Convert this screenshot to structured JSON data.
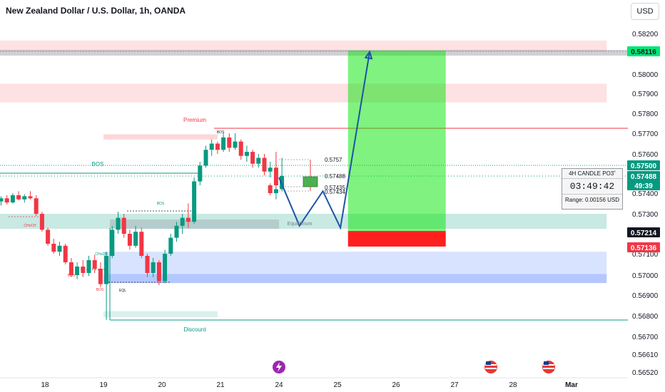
{
  "header": {
    "title": "New Zealand Dollar / U.S. Dollar, 1h, OANDA",
    "currency": "USD"
  },
  "chart_data": {
    "type": "candlestick",
    "y_ticks": [
      "0.58200",
      "0.58000",
      "0.57900",
      "0.57800",
      "0.57700",
      "0.57600",
      "0.57400",
      "0.57300",
      "0.57100",
      "0.57000",
      "0.56900",
      "0.56800",
      "0.56700",
      "0.56610",
      "0.56520"
    ],
    "x_ticks": [
      {
        "label": "18",
        "day": 18.0
      },
      {
        "label": "19",
        "day": 19.0
      },
      {
        "label": "20",
        "day": 20.0
      },
      {
        "label": "21",
        "day": 21.0
      },
      {
        "label": "24",
        "day": 24.0
      },
      {
        "label": "25",
        "day": 25.0
      },
      {
        "label": "26",
        "day": 26.0
      },
      {
        "label": "27",
        "day": 27.0
      },
      {
        "label": "28",
        "day": 28.0
      },
      {
        "label": "Mar",
        "day": 29.0
      }
    ],
    "price_badges": [
      {
        "label": "0.58116",
        "price": 0.58116,
        "bg": "#00e676",
        "fg": "#131722"
      },
      {
        "label": "0.57500",
        "price": 0.575,
        "bg": "#089981",
        "fg": "#ffffff"
      },
      {
        "label": "0.57488",
        "price": 0.57488,
        "bg": "#089981",
        "fg": "#ffffff"
      },
      {
        "label": "49:39",
        "price": 0.57452,
        "bg": "#089981",
        "fg": "#ffffff"
      },
      {
        "label": "0.57214",
        "price": 0.57214,
        "bg": "#131722",
        "fg": "#ffffff"
      },
      {
        "label": "0.57136",
        "price": 0.57136,
        "bg": "#f23645",
        "fg": "#ffffff"
      }
    ],
    "countdown_box": {
      "title": "4H CANDLE PO3˚",
      "time": "03:49:42",
      "range": "Range: 0.00156 USD"
    },
    "labels": {
      "premium": "Premium",
      "discount": "Discount",
      "equilibrium": "Equilibrium",
      "bos_main": "BOS",
      "bos_small_1": "BOS",
      "bos_small_2": "BOS",
      "bos_small_3": "BOS",
      "bos_small_4": "BOS",
      "choch_1": "CHoCH",
      "choch_2": "CHoCH",
      "eql": "EQL",
      "lvl_1": "0.5757",
      "lvl_2": "0.57488",
      "lvl_3": "0.57435",
      "lvl_4": "0.57434"
    },
    "zones": [
      {
        "name": "premium-zone-top",
        "x1": 17.05,
        "x2": 29.6,
        "p1": 0.58165,
        "p2": 0.5811,
        "color": "rgba(242,54,69,0.15)"
      },
      {
        "name": "premium-zone-2",
        "x1": 17.05,
        "x2": 29.6,
        "p1": 0.5795,
        "p2": 0.57855,
        "color": "rgba(242,54,69,0.15)"
      },
      {
        "name": "premium-block",
        "x1": 19.0,
        "x2": 20.95,
        "p1": 0.57695,
        "p2": 0.5767,
        "color": "rgba(242,54,69,0.2)"
      },
      {
        "name": "equilibrium-zone",
        "x1": 17.05,
        "x2": 29.6,
        "p1": 0.573,
        "p2": 0.57225,
        "color": "rgba(8,153,129,0.22)"
      },
      {
        "name": "demand-zone-light",
        "x1": 19.0,
        "x2": 29.6,
        "p1": 0.5711,
        "p2": 0.57005,
        "color": "rgba(41,98,255,0.18)"
      },
      {
        "name": "demand-zone-dark",
        "x1": 19.0,
        "x2": 29.6,
        "p1": 0.57005,
        "p2": 0.5696,
        "color": "rgba(41,98,255,0.35)"
      },
      {
        "name": "discount-zone",
        "x1": 19.0,
        "x2": 20.95,
        "p1": 0.56822,
        "p2": 0.56793,
        "color": "rgba(8,153,129,0.15)"
      }
    ],
    "position": {
      "day1": 25.18,
      "day2": 26.85,
      "entry": 0.57214,
      "target": 0.58116,
      "stop": 0.57136
    },
    "projection": [
      {
        "day": 24.0,
        "price": 0.5748
      },
      {
        "day": 24.35,
        "price": 0.5724
      },
      {
        "day": 24.75,
        "price": 0.5741
      },
      {
        "day": 25.05,
        "price": 0.5723
      },
      {
        "day": 25.55,
        "price": 0.5811
      }
    ],
    "candles": [
      {
        "d": 17.05,
        "o": 0.57395,
        "h": 0.5741,
        "l": 0.57375,
        "c": 0.5738
      },
      {
        "d": 17.15,
        "o": 0.5738,
        "h": 0.57395,
        "l": 0.5735,
        "c": 0.5736
      },
      {
        "d": 17.25,
        "o": 0.5736,
        "h": 0.57385,
        "l": 0.5734,
        "c": 0.57375
      },
      {
        "d": 17.35,
        "o": 0.57375,
        "h": 0.5739,
        "l": 0.57345,
        "c": 0.57355
      },
      {
        "d": 17.45,
        "o": 0.57355,
        "h": 0.574,
        "l": 0.5735,
        "c": 0.5739
      },
      {
        "d": 17.55,
        "o": 0.5739,
        "h": 0.5741,
        "l": 0.57365,
        "c": 0.5737
      },
      {
        "d": 17.65,
        "o": 0.5737,
        "h": 0.57395,
        "l": 0.57355,
        "c": 0.57385
      },
      {
        "d": 17.75,
        "o": 0.57385,
        "h": 0.5741,
        "l": 0.5737,
        "c": 0.57375
      },
      {
        "d": 17.85,
        "o": 0.57375,
        "h": 0.5739,
        "l": 0.5729,
        "c": 0.573
      },
      {
        "d": 17.95,
        "o": 0.573,
        "h": 0.5731,
        "l": 0.5721,
        "c": 0.5722
      },
      {
        "d": 18.05,
        "o": 0.5722,
        "h": 0.5723,
        "l": 0.5714,
        "c": 0.5715
      },
      {
        "d": 18.15,
        "o": 0.5715,
        "h": 0.57175,
        "l": 0.571,
        "c": 0.5711
      },
      {
        "d": 18.25,
        "o": 0.5711,
        "h": 0.5716,
        "l": 0.5709,
        "c": 0.5714
      },
      {
        "d": 18.35,
        "o": 0.5714,
        "h": 0.5715,
        "l": 0.5705,
        "c": 0.5706
      },
      {
        "d": 18.45,
        "o": 0.5706,
        "h": 0.5708,
        "l": 0.5699,
        "c": 0.57
      },
      {
        "d": 18.55,
        "o": 0.57,
        "h": 0.5706,
        "l": 0.5698,
        "c": 0.5704
      },
      {
        "d": 18.65,
        "o": 0.5704,
        "h": 0.5707,
        "l": 0.5699,
        "c": 0.5701
      },
      {
        "d": 18.75,
        "o": 0.5701,
        "h": 0.5709,
        "l": 0.56995,
        "c": 0.5707
      },
      {
        "d": 18.85,
        "o": 0.5707,
        "h": 0.57095,
        "l": 0.5701,
        "c": 0.5703
      },
      {
        "d": 18.95,
        "o": 0.5703,
        "h": 0.5706,
        "l": 0.5694,
        "c": 0.56955
      },
      {
        "d": 19.05,
        "o": 0.56955,
        "h": 0.5711,
        "l": 0.5678,
        "c": 0.5709
      },
      {
        "d": 19.15,
        "o": 0.5709,
        "h": 0.5724,
        "l": 0.5708,
        "c": 0.5722
      },
      {
        "d": 19.25,
        "o": 0.5722,
        "h": 0.5731,
        "l": 0.572,
        "c": 0.5728
      },
      {
        "d": 19.35,
        "o": 0.5728,
        "h": 0.573,
        "l": 0.5718,
        "c": 0.572
      },
      {
        "d": 19.45,
        "o": 0.572,
        "h": 0.5722,
        "l": 0.5712,
        "c": 0.5714
      },
      {
        "d": 19.55,
        "o": 0.5714,
        "h": 0.5724,
        "l": 0.5713,
        "c": 0.5721
      },
      {
        "d": 19.65,
        "o": 0.5721,
        "h": 0.5723,
        "l": 0.5708,
        "c": 0.5709
      },
      {
        "d": 19.75,
        "o": 0.5709,
        "h": 0.571,
        "l": 0.5699,
        "c": 0.5701
      },
      {
        "d": 19.85,
        "o": 0.5701,
        "h": 0.5708,
        "l": 0.5699,
        "c": 0.5706
      },
      {
        "d": 19.95,
        "o": 0.5706,
        "h": 0.5707,
        "l": 0.5695,
        "c": 0.5697
      },
      {
        "d": 20.05,
        "o": 0.5697,
        "h": 0.5712,
        "l": 0.5696,
        "c": 0.571
      },
      {
        "d": 20.15,
        "o": 0.571,
        "h": 0.572,
        "l": 0.5709,
        "c": 0.5718
      },
      {
        "d": 20.25,
        "o": 0.5718,
        "h": 0.5726,
        "l": 0.5716,
        "c": 0.5724
      },
      {
        "d": 20.35,
        "o": 0.5724,
        "h": 0.573,
        "l": 0.572,
        "c": 0.5728
      },
      {
        "d": 20.45,
        "o": 0.5728,
        "h": 0.5735,
        "l": 0.5723,
        "c": 0.5726
      },
      {
        "d": 20.55,
        "o": 0.5726,
        "h": 0.5748,
        "l": 0.5725,
        "c": 0.5746
      },
      {
        "d": 20.65,
        "o": 0.5746,
        "h": 0.5756,
        "l": 0.5744,
        "c": 0.5754
      },
      {
        "d": 20.75,
        "o": 0.5754,
        "h": 0.5764,
        "l": 0.5753,
        "c": 0.5762
      },
      {
        "d": 20.85,
        "o": 0.5762,
        "h": 0.5767,
        "l": 0.5759,
        "c": 0.5765
      },
      {
        "d": 20.95,
        "o": 0.5765,
        "h": 0.5766,
        "l": 0.576,
        "c": 0.5762
      },
      {
        "d": 21.05,
        "o": 0.5762,
        "h": 0.577,
        "l": 0.5761,
        "c": 0.5768
      },
      {
        "d": 21.15,
        "o": 0.5768,
        "h": 0.577,
        "l": 0.5761,
        "c": 0.5763
      },
      {
        "d": 21.25,
        "o": 0.5763,
        "h": 0.577,
        "l": 0.5762,
        "c": 0.5766
      },
      {
        "d": 21.35,
        "o": 0.5766,
        "h": 0.5767,
        "l": 0.5757,
        "c": 0.5759
      },
      {
        "d": 21.45,
        "o": 0.5759,
        "h": 0.5764,
        "l": 0.5756,
        "c": 0.5761
      },
      {
        "d": 21.55,
        "o": 0.5761,
        "h": 0.5762,
        "l": 0.5753,
        "c": 0.5755
      },
      {
        "d": 21.65,
        "o": 0.5755,
        "h": 0.576,
        "l": 0.5753,
        "c": 0.5758
      },
      {
        "d": 21.75,
        "o": 0.5758,
        "h": 0.576,
        "l": 0.5749,
        "c": 0.5751
      },
      {
        "d": 21.85,
        "o": 0.5751,
        "h": 0.5756,
        "l": 0.5748,
        "c": 0.5753
      },
      {
        "d": 21.95,
        "o": 0.5753,
        "h": 0.5761,
        "l": 0.5742,
        "c": 0.5744
      },
      {
        "d": 23.85,
        "o": 0.5744,
        "h": 0.5745,
        "l": 0.5739,
        "c": 0.574
      },
      {
        "d": 23.95,
        "o": 0.574,
        "h": 0.5743,
        "l": 0.5737,
        "c": 0.5742
      },
      {
        "d": 24.05,
        "o": 0.5742,
        "h": 0.5758,
        "l": 0.5741,
        "c": 0.57488
      }
    ]
  }
}
